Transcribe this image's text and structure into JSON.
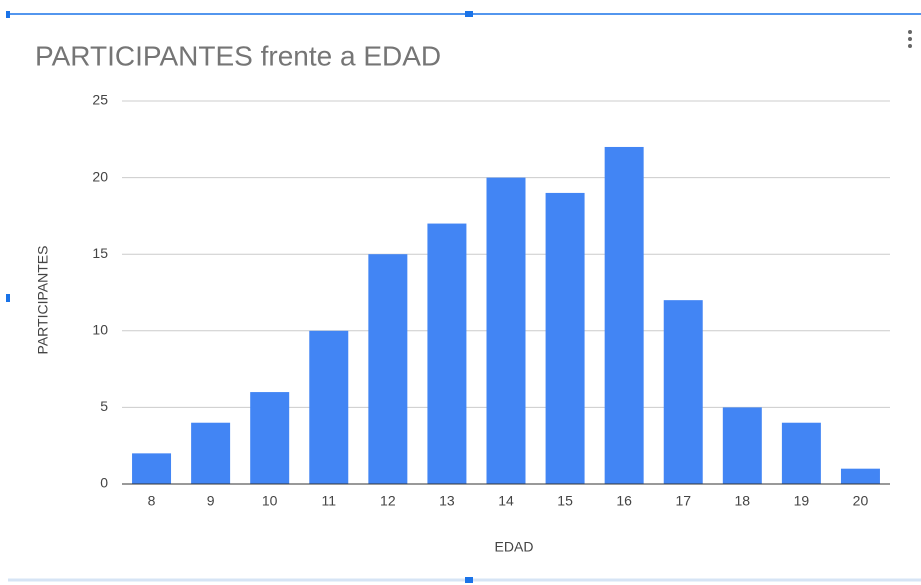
{
  "chart_data": {
    "type": "bar",
    "title": "PARTICIPANTES frente a EDAD",
    "x_label": "EDAD",
    "y_label": "PARTICIPANTES",
    "categories": [
      "8",
      "9",
      "10",
      "11",
      "12",
      "13",
      "14",
      "15",
      "16",
      "17",
      "18",
      "19",
      "20"
    ],
    "values": [
      2,
      4,
      6,
      10,
      15,
      17,
      20,
      19,
      22,
      12,
      5,
      4,
      1
    ],
    "color": "#4285f4",
    "ylim": [
      0,
      25
    ],
    "yticks": [
      0,
      5,
      10,
      15,
      20,
      25
    ],
    "grid": true
  }
}
